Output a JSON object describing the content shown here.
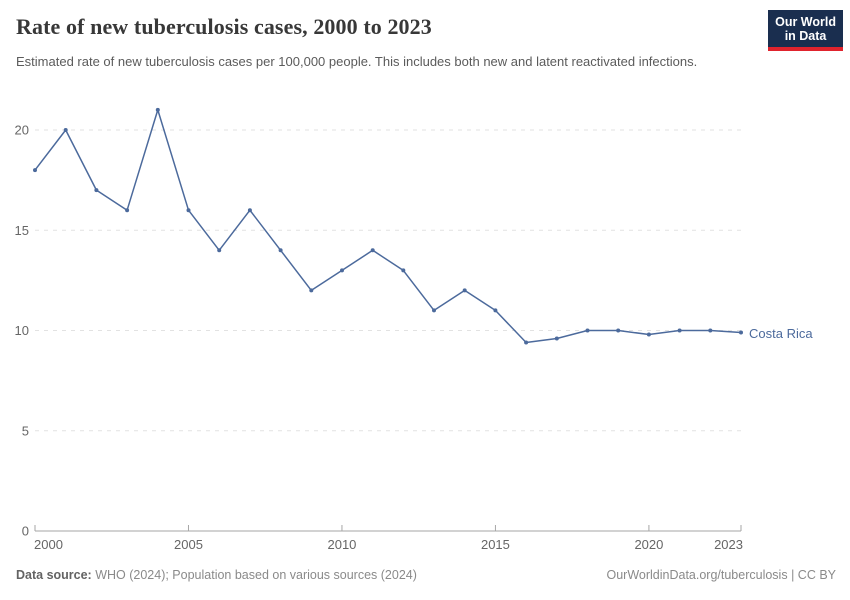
{
  "header": {
    "title": "Rate of new tuberculosis cases, 2000 to 2023",
    "subtitle": "Estimated rate of new tuberculosis cases per 100,000 people. This includes both new and latent reactivated infections.",
    "logo": {
      "line1": "Our World",
      "line2": "in Data"
    }
  },
  "chart_data": {
    "type": "line",
    "title": "Rate of new tuberculosis cases, 2000 to 2023",
    "x": [
      2000,
      2001,
      2002,
      2003,
      2004,
      2005,
      2006,
      2007,
      2008,
      2009,
      2010,
      2011,
      2012,
      2013,
      2014,
      2015,
      2016,
      2017,
      2018,
      2019,
      2020,
      2021,
      2022,
      2023
    ],
    "series": [
      {
        "name": "Costa Rica",
        "color": "#4c6a9c",
        "values": [
          18,
          20,
          17,
          16,
          21,
          16,
          14,
          16,
          14,
          12,
          13,
          14,
          13,
          11,
          12,
          11,
          9.4,
          9.6,
          10,
          10,
          9.8,
          10,
          10,
          9.9
        ]
      }
    ],
    "xlabel": "",
    "ylabel": "",
    "ylim": [
      0,
      20
    ],
    "y_ticks": [
      0,
      5,
      10,
      15,
      20
    ],
    "x_ticks": [
      2000,
      2005,
      2010,
      2015,
      2020,
      2023
    ],
    "grid": "horizontal-dashed",
    "legend_position": "end-of-line-label"
  },
  "footer": {
    "data_source_label": "Data source:",
    "data_source_text": " WHO (2024); Population based on various sources (2024)",
    "url": "OurWorldinData.org/tuberculosis",
    "license": " | CC BY"
  },
  "colors": {
    "line": "#4c6a9c",
    "grid": "#e2e2e2",
    "axis": "#a6a6a6",
    "tick_label": "#666666",
    "logo_navy": "#1a2e4f",
    "logo_red": "#e0232d"
  }
}
